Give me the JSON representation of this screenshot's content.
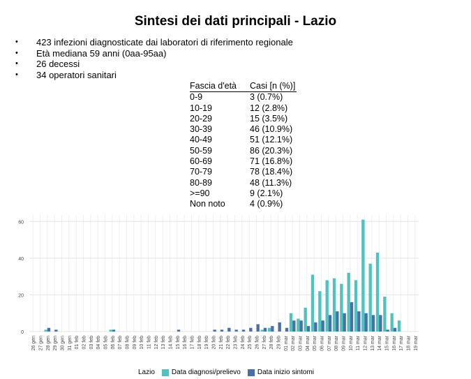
{
  "title": "Sintesi dei dati principali - Lazio",
  "bullets": [
    "423 infezioni diagnosticate dai laboratori di riferimento regionale",
    "Età mediana 59 anni (0aa-95aa)",
    "26 decessi",
    "34 operatori sanitari"
  ],
  "bullet_marker": "•",
  "age_table": {
    "headers": [
      "Fascia d'età",
      "Casi [n (%)]"
    ],
    "rows": [
      [
        "0-9",
        "3 (0.7%)"
      ],
      [
        "10-19",
        "12 (2.8%)"
      ],
      [
        "20-29",
        "15 (3.5%)"
      ],
      [
        "30-39",
        "46 (10.9%)"
      ],
      [
        "40-49",
        "51 (12.1%)"
      ],
      [
        "50-59",
        "86 (20.3%)"
      ],
      [
        "60-69",
        "71 (16.8%)"
      ],
      [
        "70-79",
        "78 (18.4%)"
      ],
      [
        "80-89",
        "48 (11.3%)"
      ],
      [
        ">=90",
        "9 (2.1%)"
      ],
      [
        "Non noto",
        "4 (0.9%)"
      ]
    ]
  },
  "chart_data": {
    "type": "bar",
    "title": "",
    "xlabel": "",
    "ylabel": "",
    "ylim": [
      0,
      62
    ],
    "yticks": [
      0,
      20,
      40,
      60
    ],
    "grid": true,
    "legend_position": "bottom",
    "legend_title": "Lazio",
    "categories": [
      "26 gen",
      "27 gen",
      "28 gen",
      "29 gen",
      "30 gen",
      "31 gen",
      "01 feb",
      "02 feb",
      "03 feb",
      "04 feb",
      "05 feb",
      "06 feb",
      "07 feb",
      "08 feb",
      "09 feb",
      "10 feb",
      "11 feb",
      "12 feb",
      "13 feb",
      "14 feb",
      "15 feb",
      "16 feb",
      "17 feb",
      "18 feb",
      "19 feb",
      "20 feb",
      "21 feb",
      "22 feb",
      "23 feb",
      "24 feb",
      "25 feb",
      "26 feb",
      "27 feb",
      "28 feb",
      "29 feb",
      "01 mar",
      "02 mar",
      "03 mar",
      "04 mar",
      "05 mar",
      "06 mar",
      "07 mar",
      "08 mar",
      "09 mar",
      "10 mar",
      "11 mar",
      "12 mar",
      "13 mar",
      "14 mar",
      "15 mar",
      "16 mar",
      "17 mar",
      "18 mar",
      "19 mar"
    ],
    "series": [
      {
        "name": "Data diagnosi/prelievo",
        "color": "#4FC3C2",
        "values": [
          0,
          0,
          1,
          0,
          0,
          0,
          0,
          0,
          0,
          0,
          0,
          1,
          0,
          0,
          0,
          0,
          0,
          0,
          0,
          0,
          0,
          0,
          0,
          0,
          0,
          0,
          0,
          0,
          0,
          0,
          0,
          0,
          1,
          2,
          0,
          0,
          10,
          7,
          13,
          31,
          22,
          28,
          29,
          26,
          32,
          28,
          61,
          37,
          43,
          19,
          10,
          6,
          0,
          0
        ]
      },
      {
        "name": "Data inizio sintomi",
        "color": "#4A6FA5",
        "values": [
          0,
          0,
          2,
          1,
          0,
          0,
          0,
          0,
          0,
          0,
          0,
          1,
          0,
          0,
          0,
          0,
          0,
          0,
          0,
          0,
          1,
          0,
          0,
          0,
          0,
          1,
          1,
          2,
          1,
          1,
          2,
          4,
          2,
          3,
          5,
          2,
          6,
          6,
          3,
          5,
          6,
          9,
          11,
          10,
          16,
          11,
          10,
          9,
          9,
          1,
          2,
          0,
          0,
          0
        ]
      }
    ]
  }
}
